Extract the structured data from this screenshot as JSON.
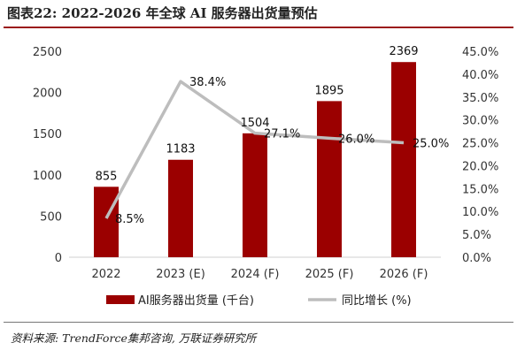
{
  "title": "图表22:  2022-2026 年全球 AI 服务器出货量预估",
  "source": "资料来源: TrendForce集邦咨询, 万联证券研究所",
  "colors": {
    "bar": "#9b0000",
    "line": "#bdbdbd",
    "accent": "#9b1c1c"
  },
  "chart_data": {
    "type": "bar",
    "categories": [
      "2022",
      "2023 (E)",
      "2024 (F)",
      "2025 (F)",
      "2026 (F)"
    ],
    "series": [
      {
        "name": "AI服务器出货量 (千台)",
        "type": "bar",
        "axis": "left",
        "values": [
          855,
          1183,
          1504,
          1895,
          2369
        ],
        "labels": [
          "855",
          "1183",
          "1504",
          "1895",
          "2369"
        ]
      },
      {
        "name": "同比增长 (%)",
        "type": "line",
        "axis": "right",
        "values": [
          8.5,
          38.4,
          27.1,
          26.0,
          25.0
        ],
        "labels": [
          "8.5%",
          "38.4%",
          "27.1%",
          "26.0%",
          "25.0%"
        ]
      }
    ],
    "ylim_left": [
      0,
      2500
    ],
    "yticks_left": [
      "0",
      "500",
      "1000",
      "1500",
      "2000",
      "2500"
    ],
    "ylim_right": [
      0,
      45
    ],
    "yticks_right": [
      "0.0%",
      "5.0%",
      "10.0%",
      "15.0%",
      "20.0%",
      "25.0%",
      "30.0%",
      "35.0%",
      "40.0%",
      "45.0%"
    ],
    "grid": false,
    "legend_position": "bottom"
  }
}
